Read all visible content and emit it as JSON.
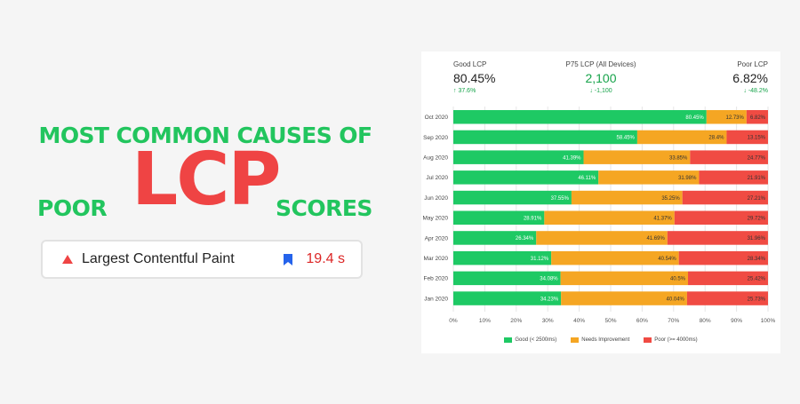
{
  "headline": {
    "line1": "MOST COMMON CAUSES OF",
    "poor": "POOR",
    "lcp": "LCP",
    "scores": "SCORES"
  },
  "metric_card": {
    "name": "Largest Contentful Paint",
    "value": "19.4 s",
    "status_icon": "warning-triangle-icon",
    "badge_icon": "bookmark-flag-icon"
  },
  "summary": {
    "good": {
      "label": "Good LCP",
      "value": "80.45%",
      "change": "↑ 37.6%"
    },
    "p75": {
      "label": "P75 LCP (All Devices)",
      "value": "2,100",
      "change": "↓ -1,100"
    },
    "poor": {
      "label": "Poor LCP",
      "value": "6.82%",
      "change": "↓ -48.2%"
    }
  },
  "colors": {
    "good": "#1ec964",
    "needs": "#f5a623",
    "poor": "#f04b43",
    "green_text": "#22c55e",
    "red_text": "#ef4444"
  },
  "chart_data": {
    "type": "bar",
    "orientation": "horizontal",
    "stacked": true,
    "categories": [
      "Oct 2020",
      "Sep 2020",
      "Aug 2020",
      "Jul 2020",
      "Jun 2020",
      "May 2020",
      "Apr 2020",
      "Mar 2020",
      "Feb 2020",
      "Jan 2020"
    ],
    "series": [
      {
        "name": "Good (< 2500ms)",
        "values": [
          80.45,
          58.45,
          41.39,
          46.11,
          37.55,
          28.91,
          26.34,
          31.12,
          34.08,
          34.23
        ],
        "labels": [
          "80.45%",
          "58.45%",
          "41.39%",
          "46.11%",
          "37.55%",
          "28.91%",
          "26.34%",
          "31.12%",
          "34.08%",
          "34.23%"
        ]
      },
      {
        "name": "Needs Improvement",
        "values": [
          12.73,
          28.4,
          33.85,
          31.98,
          35.25,
          41.37,
          41.69,
          40.54,
          40.5,
          40.04
        ],
        "labels": [
          "12.73%",
          "28.4%",
          "33.85%",
          "31.98%",
          "35.25%",
          "41.37%",
          "41.69%",
          "40.54%",
          "40.5%",
          "40.04%"
        ]
      },
      {
        "name": "Poor (>= 4000ms)",
        "values": [
          6.82,
          13.15,
          24.77,
          21.91,
          27.21,
          29.72,
          31.96,
          28.34,
          25.42,
          25.73
        ],
        "labels": [
          "6.82%",
          "13.15%",
          "24.77%",
          "21.91%",
          "27.21%",
          "29.72%",
          "31.96%",
          "28.34%",
          "25.42%",
          "25.73%"
        ]
      }
    ],
    "xlim": [
      0,
      100
    ],
    "xticks": [
      "0%",
      "10%",
      "20%",
      "30%",
      "40%",
      "50%",
      "60%",
      "70%",
      "80%",
      "90%",
      "100%"
    ],
    "grid": true,
    "legend_position": "bottom"
  }
}
